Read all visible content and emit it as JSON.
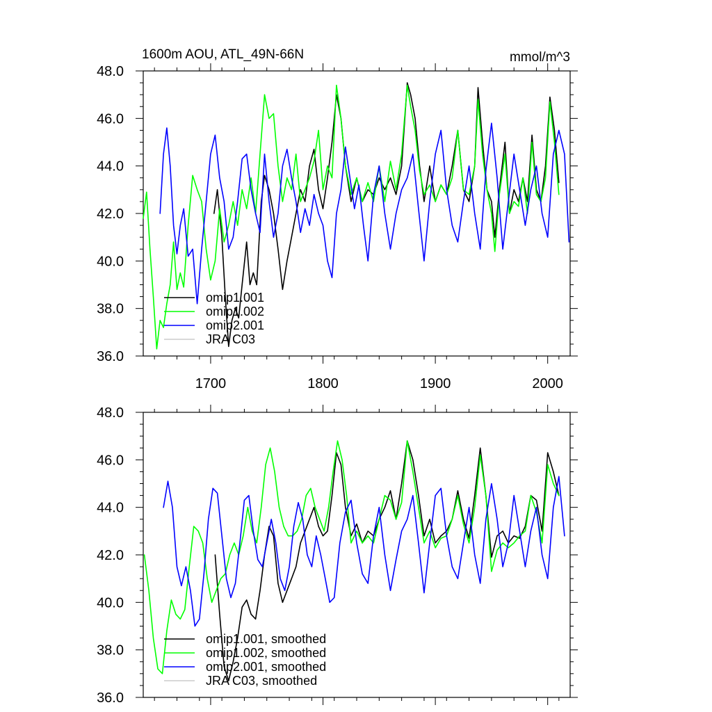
{
  "chart_data": [
    {
      "type": "line",
      "title": "1600m AOU, ATL_49N-66N",
      "units": "mmol/m^3",
      "xlim": [
        1640,
        2020
      ],
      "ylim": [
        36,
        48
      ],
      "xticks": [
        1700,
        1800,
        1900,
        2000
      ],
      "xticklabels": [
        "1700",
        "1800",
        "1900",
        "2000"
      ],
      "yticks": [
        36,
        38,
        40,
        42,
        44,
        46,
        48
      ],
      "yticklabels": [
        "36.0",
        "38.0",
        "40.0",
        "42.0",
        "44.0",
        "46.0",
        "48.0"
      ],
      "grid": false,
      "legend_position": "bottom-left",
      "series": [
        {
          "name": "omip1.001",
          "color": "#000000",
          "x": [
            1703,
            1706,
            1710,
            1713,
            1716,
            1719,
            1722,
            1725,
            1728,
            1732,
            1735,
            1738,
            1741,
            1745,
            1748,
            1752,
            1756,
            1760,
            1764,
            1768,
            1772,
            1776,
            1780,
            1784,
            1788,
            1792,
            1796,
            1800,
            1804,
            1808,
            1812,
            1816,
            1820,
            1825,
            1830,
            1835,
            1840,
            1845,
            1850,
            1855,
            1860,
            1865,
            1870,
            1875,
            1878,
            1882,
            1886,
            1890,
            1895,
            1900,
            1905,
            1910,
            1915,
            1920,
            1925,
            1930,
            1935,
            1938,
            1942,
            1946,
            1950,
            1953,
            1957,
            1962,
            1966,
            1970,
            1974,
            1978,
            1982,
            1986,
            1990,
            1994,
            1998,
            2002,
            2006,
            2010
          ],
          "y": [
            42.0,
            43.0,
            41.0,
            38.5,
            36.4,
            37.5,
            38.0,
            37.6,
            39.0,
            40.8,
            39.0,
            39.5,
            39.0,
            42.5,
            43.6,
            43.0,
            42.0,
            40.5,
            38.8,
            40.0,
            41.0,
            42.0,
            43.0,
            42.5,
            44.0,
            44.7,
            43.0,
            42.2,
            43.5,
            45.0,
            47.0,
            46.0,
            44.0,
            42.5,
            43.5,
            42.5,
            43.0,
            42.8,
            43.5,
            43.0,
            43.5,
            42.8,
            44.0,
            47.5,
            47.0,
            46.0,
            44.0,
            42.5,
            44.0,
            42.5,
            43.2,
            42.8,
            44.0,
            45.5,
            43.0,
            42.5,
            44.0,
            47.3,
            45.0,
            43.0,
            42.5,
            41.0,
            43.0,
            45.0,
            42.0,
            43.0,
            42.5,
            43.5,
            42.5,
            45.3,
            43.0,
            42.5,
            44.0,
            46.9,
            45.5,
            43.3
          ]
        },
        {
          "name": "omip1.002",
          "color": "#00ff00",
          "x": [
            1640,
            1643,
            1646,
            1649,
            1652,
            1655,
            1658,
            1661,
            1664,
            1667,
            1670,
            1673,
            1676,
            1680,
            1684,
            1688,
            1692,
            1696,
            1700,
            1704,
            1708,
            1712,
            1716,
            1720,
            1724,
            1728,
            1732,
            1736,
            1740,
            1744,
            1748,
            1752,
            1756,
            1760,
            1764,
            1768,
            1772,
            1776,
            1780,
            1784,
            1788,
            1792,
            1796,
            1800,
            1804,
            1808,
            1812,
            1816,
            1820,
            1825,
            1830,
            1835,
            1840,
            1845,
            1850,
            1855,
            1860,
            1865,
            1870,
            1875,
            1878,
            1882,
            1886,
            1890,
            1895,
            1900,
            1905,
            1910,
            1915,
            1920,
            1925,
            1930,
            1935,
            1938,
            1942,
            1946,
            1950,
            1953,
            1957,
            1962,
            1966,
            1970,
            1974,
            1978,
            1982,
            1986,
            1990,
            1994,
            1998,
            2002,
            2006,
            2010
          ],
          "y": [
            41.8,
            42.9,
            40.5,
            38.5,
            36.3,
            37.5,
            37.2,
            38.2,
            39.0,
            40.8,
            38.8,
            39.5,
            38.9,
            41.5,
            43.6,
            43.0,
            42.5,
            40.5,
            39.2,
            40.0,
            42.2,
            40.8,
            41.5,
            42.5,
            41.5,
            43.0,
            42.2,
            43.5,
            42.0,
            44.5,
            47.0,
            46.0,
            46.2,
            44.0,
            42.5,
            43.5,
            43.0,
            44.5,
            42.5,
            43.0,
            43.5,
            44.2,
            45.5,
            43.0,
            44.0,
            43.5,
            47.4,
            46.0,
            44.0,
            42.8,
            43.5,
            42.5,
            43.3,
            42.5,
            44.0,
            42.5,
            44.2,
            43.0,
            44.5,
            47.4,
            46.5,
            45.5,
            43.8,
            42.8,
            43.2,
            42.5,
            43.2,
            42.8,
            43.5,
            45.5,
            43.0,
            42.8,
            44.0,
            46.8,
            44.5,
            43.0,
            42.0,
            40.4,
            42.8,
            44.5,
            42.0,
            42.5,
            42.3,
            43.5,
            42.0,
            45.0,
            42.8,
            42.5,
            43.5,
            46.7,
            45.0,
            42.8
          ]
        },
        {
          "name": "omip2.001",
          "color": "#0000ff",
          "x": [
            1655,
            1658,
            1661,
            1664,
            1667,
            1670,
            1673,
            1676,
            1680,
            1684,
            1688,
            1692,
            1696,
            1700,
            1704,
            1708,
            1712,
            1716,
            1720,
            1724,
            1728,
            1732,
            1736,
            1740,
            1744,
            1748,
            1752,
            1756,
            1760,
            1764,
            1768,
            1772,
            1776,
            1780,
            1784,
            1788,
            1792,
            1796,
            1800,
            1804,
            1808,
            1812,
            1816,
            1820,
            1824,
            1828,
            1832,
            1836,
            1840,
            1845,
            1850,
            1855,
            1860,
            1865,
            1870,
            1875,
            1880,
            1885,
            1890,
            1895,
            1900,
            1905,
            1910,
            1915,
            1920,
            1925,
            1930,
            1935,
            1940,
            1945,
            1950,
            1955,
            1960,
            1965,
            1970,
            1975,
            1980,
            1985,
            1990,
            1995,
            2000,
            2005,
            2010,
            2015,
            2019
          ],
          "y": [
            42.0,
            44.5,
            45.6,
            44.0,
            41.5,
            40.3,
            41.5,
            42.2,
            40.2,
            40.5,
            38.2,
            40.5,
            42.5,
            44.5,
            45.3,
            43.5,
            42.5,
            40.5,
            41.0,
            42.5,
            44.3,
            44.5,
            43.0,
            42.0,
            41.2,
            44.5,
            42.5,
            41.0,
            42.0,
            44.0,
            44.7,
            43.5,
            42.5,
            41.2,
            42.2,
            41.5,
            42.8,
            42.0,
            41.5,
            40.0,
            39.3,
            42.0,
            43.0,
            44.8,
            43.5,
            42.2,
            43.2,
            41.5,
            40.0,
            42.8,
            44.0,
            42.0,
            40.5,
            42.0,
            43.0,
            43.5,
            44.5,
            42.2,
            40.0,
            42.5,
            44.5,
            45.5,
            43.0,
            41.5,
            40.8,
            42.5,
            44.0,
            42.0,
            40.5,
            43.8,
            45.8,
            43.5,
            40.5,
            42.5,
            44.5,
            43.0,
            41.5,
            43.0,
            44.0,
            42.0,
            41.0,
            44.5,
            45.5,
            44.5,
            40.8
          ]
        },
        {
          "name": "JRA C03",
          "color": "#cccccc",
          "x": [],
          "y": []
        }
      ]
    },
    {
      "type": "line",
      "xlim": [
        1640,
        2020
      ],
      "ylim": [
        36,
        48
      ],
      "xticks": [
        1700,
        1800,
        1900,
        2000
      ],
      "yticks": [
        36,
        38,
        40,
        42,
        44,
        46,
        48
      ],
      "yticklabels": [
        "36.0",
        "38.0",
        "40.0",
        "42.0",
        "44.0",
        "46.0",
        "48.0"
      ],
      "grid": false,
      "legend_position": "bottom-left",
      "series": [
        {
          "name": "omip1.001, smoothed",
          "color": "#000000",
          "x": [
            1704,
            1708,
            1712,
            1716,
            1720,
            1724,
            1728,
            1732,
            1736,
            1740,
            1744,
            1748,
            1752,
            1756,
            1760,
            1764,
            1768,
            1772,
            1776,
            1780,
            1784,
            1788,
            1792,
            1796,
            1800,
            1804,
            1808,
            1812,
            1816,
            1820,
            1825,
            1830,
            1835,
            1840,
            1845,
            1850,
            1855,
            1860,
            1865,
            1870,
            1875,
            1880,
            1885,
            1890,
            1895,
            1900,
            1905,
            1910,
            1915,
            1920,
            1925,
            1930,
            1935,
            1940,
            1945,
            1950,
            1955,
            1960,
            1965,
            1970,
            1975,
            1980,
            1985,
            1990,
            1995,
            2000,
            2005,
            2010
          ],
          "y": [
            42.0,
            39.5,
            37.3,
            36.7,
            37.5,
            38.5,
            39.8,
            40.1,
            39.5,
            39.3,
            40.5,
            42.0,
            43.2,
            42.8,
            40.8,
            40.0,
            40.5,
            41.0,
            41.5,
            42.5,
            43.0,
            43.5,
            44.0,
            43.2,
            42.8,
            43.0,
            44.5,
            46.3,
            45.8,
            44.0,
            42.8,
            43.3,
            42.5,
            43.0,
            42.8,
            43.5,
            44.0,
            44.7,
            43.5,
            45.0,
            46.8,
            46.0,
            44.5,
            42.8,
            43.5,
            42.5,
            42.8,
            43.0,
            43.5,
            44.7,
            43.5,
            42.7,
            44.5,
            46.5,
            44.5,
            41.9,
            42.8,
            43.0,
            42.5,
            42.8,
            42.7,
            43.2,
            44.5,
            44.3,
            43.0,
            46.3,
            45.5,
            44.5
          ]
        },
        {
          "name": "omip1.002, smoothed",
          "color": "#00ff00",
          "x": [
            1641,
            1645,
            1649,
            1653,
            1657,
            1661,
            1665,
            1669,
            1673,
            1677,
            1681,
            1685,
            1689,
            1693,
            1697,
            1701,
            1705,
            1709,
            1713,
            1717,
            1721,
            1725,
            1729,
            1733,
            1737,
            1741,
            1745,
            1749,
            1753,
            1757,
            1761,
            1765,
            1769,
            1773,
            1777,
            1781,
            1785,
            1789,
            1793,
            1797,
            1801,
            1805,
            1809,
            1813,
            1817,
            1821,
            1825,
            1830,
            1835,
            1840,
            1845,
            1850,
            1855,
            1860,
            1865,
            1870,
            1875,
            1880,
            1885,
            1890,
            1895,
            1900,
            1905,
            1910,
            1915,
            1920,
            1925,
            1930,
            1935,
            1940,
            1945,
            1950,
            1955,
            1960,
            1965,
            1970,
            1975,
            1980,
            1985,
            1990,
            1995,
            2000,
            2005,
            2010
          ],
          "y": [
            42.0,
            40.5,
            38.5,
            37.2,
            37.0,
            38.8,
            40.1,
            39.5,
            39.3,
            39.7,
            41.5,
            43.2,
            43.0,
            42.5,
            41.0,
            40.0,
            40.5,
            41.0,
            41.2,
            42.0,
            42.5,
            42.0,
            42.8,
            44.0,
            43.0,
            42.5,
            44.0,
            45.8,
            46.5,
            45.5,
            44.0,
            43.2,
            42.8,
            42.8,
            43.0,
            43.5,
            44.5,
            44.8,
            44.0,
            43.5,
            43.0,
            44.0,
            45.5,
            46.8,
            46.0,
            44.5,
            42.5,
            43.0,
            42.5,
            42.8,
            42.5,
            43.5,
            44.5,
            44.3,
            43.5,
            44.2,
            46.8,
            45.5,
            44.0,
            42.5,
            43.0,
            42.3,
            42.7,
            42.8,
            43.5,
            44.5,
            43.3,
            42.5,
            44.0,
            46.2,
            44.5,
            41.3,
            42.2,
            42.5,
            42.3,
            42.5,
            42.8,
            43.0,
            44.5,
            43.8,
            42.5,
            45.8,
            45.0,
            44.5
          ]
        },
        {
          "name": "omip2.001, smoothed",
          "color": "#0000ff",
          "x": [
            1658,
            1662,
            1666,
            1670,
            1674,
            1678,
            1682,
            1686,
            1690,
            1694,
            1698,
            1702,
            1706,
            1710,
            1714,
            1718,
            1722,
            1726,
            1730,
            1734,
            1738,
            1742,
            1746,
            1750,
            1754,
            1758,
            1762,
            1766,
            1770,
            1774,
            1778,
            1782,
            1786,
            1790,
            1794,
            1798,
            1802,
            1806,
            1810,
            1815,
            1820,
            1825,
            1830,
            1835,
            1840,
            1845,
            1850,
            1855,
            1860,
            1865,
            1870,
            1875,
            1880,
            1885,
            1890,
            1895,
            1900,
            1905,
            1910,
            1915,
            1920,
            1925,
            1930,
            1935,
            1940,
            1945,
            1950,
            1955,
            1960,
            1965,
            1970,
            1975,
            1980,
            1985,
            1990,
            1995,
            2000,
            2005,
            2010,
            2015
          ],
          "y": [
            44.0,
            45.1,
            44.0,
            41.5,
            40.7,
            41.5,
            40.5,
            39.0,
            39.3,
            41.2,
            43.5,
            44.8,
            44.6,
            42.8,
            41.0,
            40.2,
            40.8,
            42.5,
            44.3,
            44.5,
            43.0,
            41.8,
            41.5,
            42.5,
            43.5,
            42.5,
            41.0,
            40.5,
            41.5,
            43.2,
            44.2,
            43.5,
            42.0,
            41.5,
            42.8,
            42.0,
            41.0,
            40.0,
            40.2,
            42.5,
            43.8,
            44.3,
            42.5,
            41.2,
            40.8,
            42.8,
            44.0,
            42.0,
            40.5,
            41.8,
            43.0,
            43.5,
            44.5,
            42.5,
            40.4,
            42.5,
            44.5,
            44.8,
            42.8,
            41.5,
            41.0,
            42.5,
            44.0,
            42.0,
            40.8,
            43.5,
            45.0,
            43.5,
            41.5,
            42.5,
            44.5,
            43.0,
            41.5,
            43.0,
            44.0,
            42.0,
            41.0,
            44.0,
            45.3,
            42.8
          ]
        },
        {
          "name": "JRA C03, smoothed",
          "color": "#cccccc",
          "x": [],
          "y": []
        }
      ]
    }
  ]
}
